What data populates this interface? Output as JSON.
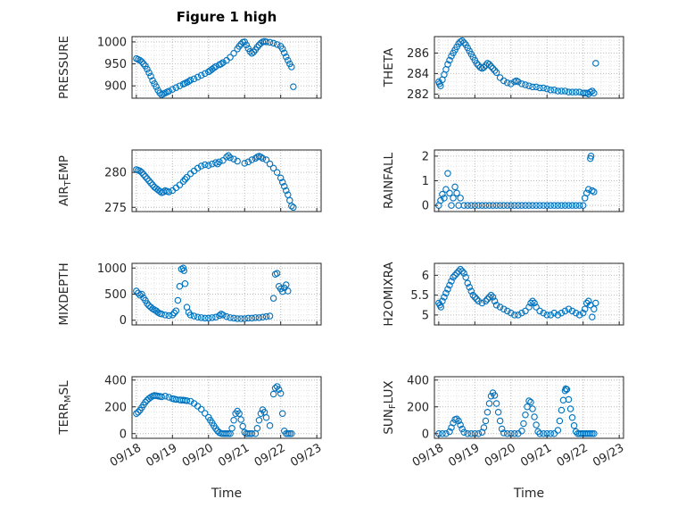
{
  "figure": {
    "title": "Figure 1 high",
    "background": "#ffffff",
    "axis_color": "#262626",
    "grid_color": "#bdbdbd",
    "minor_grid_color": "#e1e1e1",
    "marker": {
      "shape": "open-circle",
      "color": "#0072BD"
    }
  },
  "chart_data": {
    "x_axis": {
      "xlim": [
        17.88,
        23.12
      ],
      "xticks": [
        18,
        19,
        20,
        21,
        22,
        23
      ],
      "xtick_labels": [
        "09/18",
        "09/19",
        "09/20",
        "09/21",
        "09/22",
        "09/23"
      ],
      "minor_step": 0.25,
      "tick_label_rotation_deg": 30
    },
    "subplots": [
      {
        "name": "pressure",
        "type": "scatter",
        "ylabel": "PRESSURE",
        "xlabel": "",
        "ylim": [
          872,
          1012
        ],
        "yticks": [
          900,
          950,
          1000
        ],
        "x": [
          18,
          18.05,
          18.1,
          18.15,
          18.2,
          18.25,
          18.3,
          18.35,
          18.4,
          18.45,
          18.5,
          18.55,
          18.6,
          18.65,
          18.7,
          18.75,
          18.8,
          18.85,
          18.9,
          19,
          19.1,
          19.2,
          19.3,
          19.35,
          19.4,
          19.45,
          19.5,
          19.6,
          19.7,
          19.8,
          19.9,
          20,
          20.05,
          20.1,
          20.15,
          20.2,
          20.3,
          20.35,
          20.4,
          20.5,
          20.6,
          20.7,
          20.8,
          20.85,
          20.9,
          20.95,
          21,
          21.05,
          21.1,
          21.15,
          21.2,
          21.25,
          21.3,
          21.35,
          21.4,
          21.45,
          21.5,
          21.55,
          21.6,
          21.7,
          21.8,
          21.9,
          22,
          22.05,
          22.1,
          22.15,
          22.2,
          22.25,
          22.3,
          22.35
        ],
        "y": [
          962,
          960,
          958,
          955,
          950,
          945,
          938,
          930,
          922,
          912,
          905,
          898,
          890,
          884,
          880,
          882,
          884,
          886,
          888,
          892,
          896,
          900,
          904,
          906,
          908,
          910,
          913,
          916,
          920,
          924,
          928,
          932,
          935,
          938,
          941,
          944,
          948,
          950,
          953,
          958,
          965,
          974,
          984,
          990,
          995,
          999,
          1000,
          993,
          985,
          978,
          974,
          977,
          982,
          988,
          993,
          997,
          1000,
          1001,
          1000,
          999,
          997,
          994,
          990,
          984,
          975,
          966,
          958,
          950,
          943,
          898
        ]
      },
      {
        "name": "theta",
        "type": "scatter",
        "ylabel": "THETA",
        "xlabel": "",
        "ylim": [
          281.6,
          287.6
        ],
        "yticks": [
          282,
          284,
          286
        ],
        "x": [
          18,
          18.02,
          18.05,
          18.1,
          18.15,
          18.2,
          18.25,
          18.3,
          18.35,
          18.4,
          18.45,
          18.5,
          18.55,
          18.6,
          18.65,
          18.7,
          18.75,
          18.8,
          18.85,
          18.9,
          18.95,
          19,
          19.05,
          19.1,
          19.15,
          19.2,
          19.25,
          19.3,
          19.35,
          19.4,
          19.45,
          19.5,
          19.55,
          19.6,
          19.7,
          19.8,
          19.9,
          20,
          20.1,
          20.15,
          20.2,
          20.3,
          20.4,
          20.5,
          20.6,
          20.7,
          20.8,
          20.9,
          21,
          21.1,
          21.2,
          21.3,
          21.4,
          21.5,
          21.6,
          21.7,
          21.8,
          21.9,
          22,
          22.05,
          22.1,
          22.15,
          22.2,
          22.25,
          22.3,
          22.35
        ],
        "y": [
          283.2,
          283,
          282.8,
          283.4,
          283.9,
          284.4,
          284.9,
          285.3,
          285.7,
          286,
          286.3,
          286.6,
          286.9,
          287.1,
          287.2,
          287,
          286.8,
          286.5,
          286.2,
          285.9,
          285.6,
          285.3,
          285,
          284.8,
          284.6,
          284.5,
          284.6,
          284.8,
          285,
          284.9,
          284.7,
          284.5,
          284.3,
          284.1,
          283.6,
          283.3,
          283.1,
          283,
          283.2,
          283.3,
          283.2,
          283,
          282.9,
          282.8,
          282.7,
          282.7,
          282.6,
          282.6,
          282.5,
          282.4,
          282.4,
          282.3,
          282.3,
          282.3,
          282.2,
          282.2,
          282.2,
          282.2,
          282.1,
          282.1,
          282.1,
          282,
          282.2,
          282.3,
          282.1,
          285
        ]
      },
      {
        "name": "air-temp",
        "type": "scatter",
        "ylabel": "AIR_TEMP",
        "xlabel": "",
        "ylim": [
          274.4,
          283.2
        ],
        "yticks": [
          275,
          280
        ],
        "x": [
          18,
          18.05,
          18.1,
          18.15,
          18.2,
          18.25,
          18.3,
          18.35,
          18.4,
          18.45,
          18.5,
          18.55,
          18.6,
          18.65,
          18.7,
          18.75,
          18.8,
          18.85,
          18.9,
          19,
          19.1,
          19.2,
          19.3,
          19.35,
          19.4,
          19.5,
          19.6,
          19.7,
          19.8,
          19.9,
          20,
          20.1,
          20.2,
          20.25,
          20.3,
          20.4,
          20.5,
          20.55,
          20.6,
          20.7,
          20.8,
          21,
          21.1,
          21.2,
          21.3,
          21.35,
          21.4,
          21.45,
          21.5,
          21.6,
          21.7,
          21.8,
          21.9,
          22,
          22.05,
          22.1,
          22.15,
          22.2,
          22.25,
          22.3,
          22.35
        ],
        "y": [
          280.4,
          280.3,
          280.2,
          280,
          279.7,
          279.4,
          279.1,
          278.8,
          278.5,
          278.2,
          277.9,
          277.7,
          277.5,
          277.3,
          277.1,
          277.2,
          277.4,
          277.3,
          277.2,
          277.4,
          277.8,
          278.2,
          278.7,
          279,
          279.3,
          279.8,
          280.2,
          280.6,
          280.9,
          281.1,
          281,
          281.2,
          281.4,
          281.2,
          281.5,
          281.7,
          282.2,
          282.4,
          282.1,
          281.9,
          281.6,
          281.3,
          281.5,
          281.8,
          282,
          282.2,
          282.3,
          282.2,
          282,
          281.8,
          281.2,
          280.6,
          280,
          279.2,
          278.6,
          278,
          277.4,
          276.8,
          276,
          275.2,
          275
        ]
      },
      {
        "name": "rainfall",
        "type": "scatter",
        "ylabel": "RAINFALL",
        "xlabel": "",
        "ylim": [
          -0.25,
          2.25
        ],
        "yticks": [
          0,
          1,
          2
        ],
        "x": [
          18,
          18.05,
          18.1,
          18.15,
          18.2,
          18.25,
          18.3,
          18.35,
          18.4,
          18.45,
          18.5,
          18.55,
          18.6,
          18.7,
          18.8,
          18.9,
          19,
          19.1,
          19.2,
          19.3,
          19.4,
          19.5,
          19.6,
          19.7,
          19.8,
          19.9,
          20,
          20.1,
          20.2,
          20.3,
          20.4,
          20.5,
          20.6,
          20.7,
          20.8,
          20.9,
          21,
          21.1,
          21.2,
          21.3,
          21.4,
          21.5,
          21.6,
          21.7,
          21.8,
          21.9,
          22,
          22.05,
          22.1,
          22.15,
          22.2,
          22.22,
          22.25,
          22.3
        ],
        "y": [
          0,
          0.2,
          0.45,
          0.3,
          0.65,
          1.3,
          0.5,
          0,
          0.3,
          0.75,
          0.5,
          0,
          0.3,
          0,
          0,
          0,
          0,
          0,
          0,
          0,
          0,
          0,
          0,
          0,
          0,
          0,
          0,
          0,
          0,
          0,
          0,
          0,
          0,
          0,
          0,
          0,
          0,
          0,
          0,
          0,
          0,
          0,
          0,
          0,
          0,
          0,
          0,
          0.3,
          0.5,
          0.65,
          1.9,
          2,
          0.6,
          0.55
        ]
      },
      {
        "name": "mixdepth",
        "type": "scatter",
        "ylabel": "MIXDEPTH",
        "xlabel": "",
        "ylim": [
          -90,
          1090
        ],
        "yticks": [
          0,
          500,
          1000
        ],
        "x": [
          18,
          18.05,
          18.1,
          18.15,
          18.2,
          18.25,
          18.3,
          18.35,
          18.4,
          18.45,
          18.5,
          18.55,
          18.6,
          18.65,
          18.7,
          18.8,
          18.9,
          19,
          19.05,
          19.1,
          19.15,
          19.2,
          19.25,
          19.3,
          19.32,
          19.35,
          19.4,
          19.45,
          19.5,
          19.6,
          19.7,
          19.8,
          19.9,
          20,
          20.1,
          20.2,
          20.3,
          20.35,
          20.4,
          20.5,
          20.6,
          20.7,
          20.8,
          20.9,
          21,
          21.1,
          21.2,
          21.3,
          21.4,
          21.5,
          21.6,
          21.7,
          21.8,
          21.85,
          21.9,
          21.95,
          22,
          22.05,
          22.1,
          22.15,
          22.2
        ],
        "y": [
          560,
          520,
          480,
          500,
          430,
          380,
          320,
          280,
          250,
          220,
          200,
          180,
          150,
          130,
          120,
          100,
          90,
          100,
          140,
          180,
          380,
          650,
          980,
          1000,
          950,
          700,
          250,
          150,
          100,
          80,
          60,
          50,
          40,
          40,
          50,
          60,
          90,
          120,
          100,
          70,
          50,
          40,
          30,
          30,
          30,
          40,
          40,
          50,
          50,
          60,
          70,
          80,
          420,
          880,
          900,
          650,
          600,
          550,
          620,
          680,
          560
        ]
      },
      {
        "name": "h2omixra",
        "type": "scatter",
        "ylabel": "H2OMIXRA",
        "xlabel": "",
        "ylim": [
          4.75,
          6.3
        ],
        "yticks": [
          5,
          5.5,
          6
        ],
        "x": [
          18,
          18.03,
          18.06,
          18.1,
          18.15,
          18.2,
          18.25,
          18.3,
          18.35,
          18.4,
          18.45,
          18.5,
          18.55,
          18.6,
          18.65,
          18.7,
          18.75,
          18.8,
          18.85,
          18.9,
          18.95,
          19,
          19.05,
          19.1,
          19.2,
          19.3,
          19.35,
          19.4,
          19.45,
          19.5,
          19.55,
          19.6,
          19.7,
          19.8,
          19.9,
          20,
          20.1,
          20.2,
          20.3,
          20.4,
          20.5,
          20.55,
          20.6,
          20.65,
          20.7,
          20.8,
          20.9,
          21,
          21.1,
          21.2,
          21.3,
          21.4,
          21.5,
          21.6,
          21.7,
          21.8,
          21.9,
          22,
          22.05,
          22.1,
          22.15,
          22.2,
          22.25,
          22.3,
          22.35
        ],
        "y": [
          5.3,
          5.25,
          5.2,
          5.35,
          5.45,
          5.55,
          5.65,
          5.75,
          5.85,
          5.95,
          6,
          6.05,
          6.1,
          6.15,
          6.1,
          6.05,
          5.95,
          5.8,
          5.7,
          5.6,
          5.5,
          5.45,
          5.4,
          5.35,
          5.3,
          5.35,
          5.4,
          5.45,
          5.5,
          5.45,
          5.35,
          5.25,
          5.2,
          5.15,
          5.1,
          5.05,
          5,
          5,
          5.05,
          5.1,
          5.2,
          5.3,
          5.35,
          5.3,
          5.2,
          5.1,
          5.05,
          5,
          5,
          5.05,
          5,
          5.05,
          5.1,
          5.15,
          5.1,
          5.05,
          5,
          5.05,
          5.15,
          5.3,
          5.35,
          5.25,
          4.95,
          5.15,
          5.3
        ]
      },
      {
        "name": "terr-msl",
        "type": "scatter",
        "ylabel": "TERR_MSL",
        "xlabel": "Time",
        "ylim": [
          -35,
          425
        ],
        "yticks": [
          0,
          200,
          400
        ],
        "x": [
          18,
          18.05,
          18.1,
          18.15,
          18.2,
          18.25,
          18.3,
          18.35,
          18.4,
          18.45,
          18.5,
          18.55,
          18.6,
          18.65,
          18.7,
          18.8,
          18.9,
          19,
          19.05,
          19.1,
          19.2,
          19.25,
          19.3,
          19.35,
          19.4,
          19.5,
          19.6,
          19.7,
          19.8,
          19.9,
          20,
          20.05,
          20.1,
          20.15,
          20.2,
          20.25,
          20.3,
          20.35,
          20.4,
          20.45,
          20.5,
          20.55,
          20.6,
          20.65,
          20.7,
          20.75,
          20.8,
          20.85,
          20.9,
          20.95,
          21,
          21.05,
          21.1,
          21.15,
          21.2,
          21.3,
          21.35,
          21.4,
          21.45,
          21.5,
          21.55,
          21.6,
          21.7,
          21.8,
          21.85,
          21.9,
          21.95,
          22,
          22.05,
          22.1,
          22.15,
          22.2,
          22.25,
          22.3
        ],
        "y": [
          150,
          160,
          175,
          195,
          215,
          235,
          250,
          262,
          272,
          280,
          285,
          283,
          280,
          278,
          275,
          280,
          272,
          262,
          258,
          255,
          252,
          250,
          250,
          248,
          246,
          242,
          225,
          205,
          182,
          152,
          122,
          100,
          80,
          58,
          38,
          20,
          8,
          2,
          0,
          0,
          0,
          0,
          0,
          40,
          100,
          150,
          168,
          150,
          105,
          55,
          10,
          0,
          0,
          0,
          0,
          0,
          40,
          100,
          150,
          178,
          160,
          120,
          60,
          295,
          340,
          352,
          330,
          300,
          150,
          20,
          0,
          0,
          0,
          0
        ]
      },
      {
        "name": "sun-flux",
        "type": "scatter",
        "ylabel": "SUN_FLUX",
        "xlabel": "Time",
        "ylim": [
          -35,
          425
        ],
        "yticks": [
          0,
          200,
          400
        ],
        "x": [
          18,
          18.1,
          18.2,
          18.3,
          18.35,
          18.4,
          18.45,
          18.5,
          18.55,
          18.6,
          18.65,
          18.7,
          18.8,
          18.9,
          19,
          19.1,
          19.2,
          19.25,
          19.3,
          19.35,
          19.4,
          19.45,
          19.5,
          19.55,
          19.6,
          19.65,
          19.7,
          19.75,
          19.8,
          19.9,
          20,
          20.1,
          20.2,
          20.3,
          20.35,
          20.4,
          20.45,
          20.5,
          20.55,
          20.6,
          20.65,
          20.7,
          20.75,
          20.8,
          20.9,
          21,
          21.1,
          21.2,
          21.3,
          21.35,
          21.4,
          21.45,
          21.5,
          21.52,
          21.55,
          21.6,
          21.65,
          21.7,
          21.75,
          21.8,
          21.85,
          21.9,
          21.95,
          22,
          22.05,
          22.1,
          22.15,
          22.2,
          22.25,
          22.3
        ],
        "y": [
          0,
          0,
          0,
          15,
          45,
          80,
          105,
          110,
          95,
          65,
          35,
          10,
          0,
          0,
          0,
          0,
          10,
          45,
          95,
          160,
          225,
          280,
          305,
          285,
          225,
          160,
          95,
          35,
          5,
          0,
          0,
          0,
          0,
          20,
          75,
          140,
          200,
          245,
          235,
          185,
          125,
          65,
          15,
          0,
          0,
          0,
          0,
          0,
          25,
          95,
          175,
          250,
          320,
          335,
          330,
          255,
          185,
          120,
          60,
          15,
          0,
          0,
          0,
          0,
          0,
          0,
          0,
          0,
          0,
          0
        ]
      }
    ]
  }
}
